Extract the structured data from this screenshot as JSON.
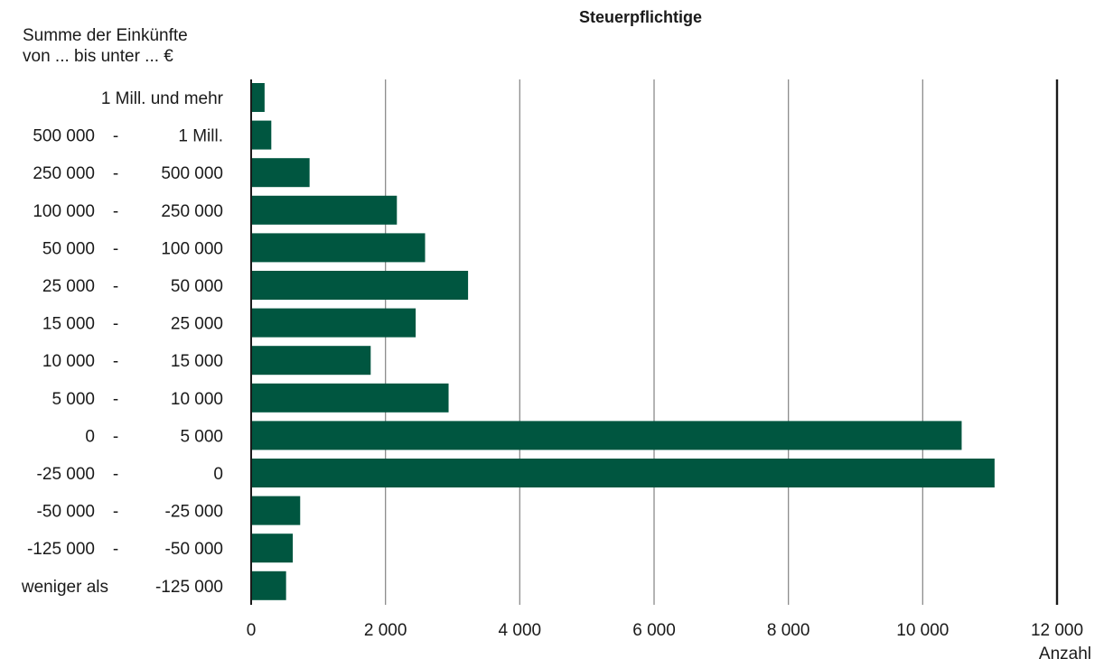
{
  "chart_data": {
    "type": "bar",
    "orientation": "horizontal",
    "title": "Steuerpflichtige",
    "ylabel_lines": [
      "Summe der Einkünfte",
      "von ... bis unter ... €"
    ],
    "xlabel": "Anzahl",
    "xlim": [
      0,
      12000
    ],
    "x_ticks": [
      "0",
      "2 000",
      "4 000",
      "6 000",
      "8 000",
      "10 000",
      "12 000"
    ],
    "x_tick_values": [
      0,
      2000,
      4000,
      6000,
      8000,
      10000,
      12000
    ],
    "grid": true,
    "bar_color": "#005640",
    "categories": [
      {
        "from": "1 Mill. und mehr",
        "to": ""
      },
      {
        "from": "500 000",
        "to": "1 Mill."
      },
      {
        "from": "250 000",
        "to": "500 000"
      },
      {
        "from": "100 000",
        "to": "250 000"
      },
      {
        "from": "50 000",
        "to": "100 000"
      },
      {
        "from": "25 000",
        "to": "50 000"
      },
      {
        "from": "15 000",
        "to": "25 000"
      },
      {
        "from": "10 000",
        "to": "15 000"
      },
      {
        "from": "5 000",
        "to": "10 000"
      },
      {
        "from": "0",
        "to": "5 000"
      },
      {
        "from": "-25 000",
        "to": "0"
      },
      {
        "from": "-50 000",
        "to": "-25 000"
      },
      {
        "from": "-125 000",
        "to": "-50 000"
      },
      {
        "from": "weniger als",
        "to": "-125 000"
      }
    ],
    "separator": "-",
    "values": [
      200,
      300,
      870,
      2170,
      2590,
      3230,
      2450,
      1780,
      2940,
      10580,
      11070,
      730,
      620,
      520
    ]
  }
}
